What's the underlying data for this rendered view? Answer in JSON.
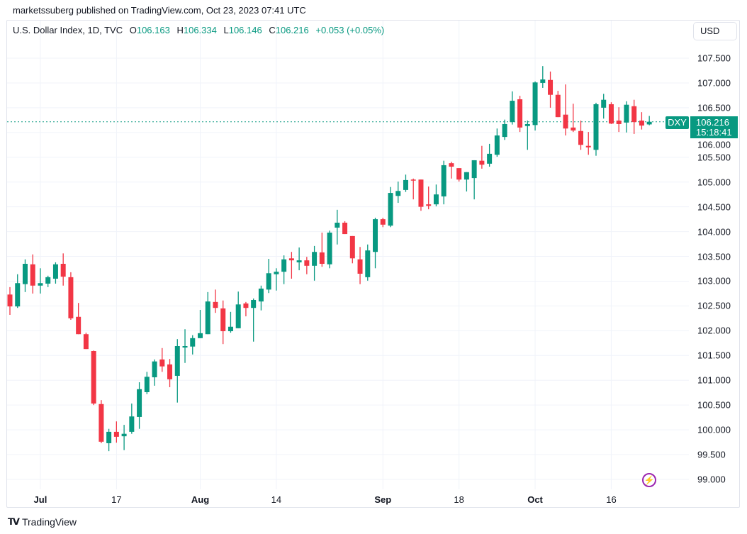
{
  "header": {
    "published": "marketssuberg published on TradingView.com, Oct 23, 2023 07:41 UTC"
  },
  "legend": {
    "symbol": "U.S. Dollar Index, 1D, TVC",
    "o_label": "O",
    "o": "106.163",
    "h_label": "H",
    "h": "106.334",
    "l_label": "L",
    "l": "106.146",
    "c_label": "C",
    "c": "106.216",
    "change": "+0.053 (+0.05%)"
  },
  "currency_button": "USD",
  "last_price": {
    "ticker": "DXY",
    "price": "106.216",
    "countdown": "15:18:41"
  },
  "footer": {
    "brand": "TradingView",
    "logo_mark": "TV"
  },
  "colors": {
    "up": "#089981",
    "down": "#F23645",
    "grid": "#f0f3fa",
    "alert": "#9c27b0"
  },
  "icons": {
    "alert": "lightning-bolt-icon"
  },
  "chart_data": {
    "type": "candlestick",
    "title": "U.S. Dollar Index, 1D, TVC",
    "ylim": [
      98.85,
      107.85
    ],
    "yticks": [
      "99.000",
      "99.500",
      "100.000",
      "100.500",
      "101.000",
      "101.500",
      "102.000",
      "102.500",
      "103.000",
      "103.500",
      "104.000",
      "104.500",
      "105.000",
      "105.500",
      "106.000",
      "106.500",
      "107.000",
      "107.500"
    ],
    "xticks": [
      {
        "label": "Jul",
        "index": 4,
        "major": true
      },
      {
        "label": "17",
        "index": 14,
        "major": false
      },
      {
        "label": "Aug",
        "index": 25,
        "major": true
      },
      {
        "label": "14",
        "index": 35,
        "major": false
      },
      {
        "label": "Sep",
        "index": 49,
        "major": true
      },
      {
        "label": "18",
        "index": 59,
        "major": false
      },
      {
        "label": "Oct",
        "index": 69,
        "major": true
      },
      {
        "label": "16",
        "index": 79,
        "major": false
      }
    ],
    "grid": true,
    "last_price_line": 106.216,
    "ohlc_columns": [
      "open",
      "high",
      "low",
      "close"
    ],
    "candles": [
      [
        102.73,
        102.88,
        102.32,
        102.49
      ],
      [
        102.49,
        103.14,
        102.46,
        102.96
      ],
      [
        102.94,
        103.44,
        102.78,
        103.35
      ],
      [
        103.34,
        103.54,
        102.75,
        102.91
      ],
      [
        102.91,
        103.26,
        102.75,
        102.96
      ],
      [
        102.95,
        103.11,
        102.88,
        103.08
      ],
      [
        103.05,
        103.38,
        102.95,
        103.34
      ],
      [
        103.35,
        103.56,
        102.91,
        103.09
      ],
      [
        103.08,
        103.18,
        102.22,
        102.25
      ],
      [
        102.28,
        102.56,
        101.93,
        101.93
      ],
      [
        101.93,
        101.96,
        101.63,
        101.63
      ],
      [
        101.59,
        101.6,
        100.5,
        100.53
      ],
      [
        100.52,
        100.6,
        99.73,
        99.76
      ],
      [
        99.73,
        100.02,
        99.57,
        99.96
      ],
      [
        99.96,
        100.17,
        99.74,
        99.86
      ],
      [
        99.87,
        100.1,
        99.59,
        99.92
      ],
      [
        99.96,
        100.53,
        99.92,
        100.27
      ],
      [
        100.26,
        100.96,
        100.02,
        100.82
      ],
      [
        100.76,
        101.17,
        100.72,
        101.07
      ],
      [
        101.06,
        101.42,
        100.89,
        101.38
      ],
      [
        101.42,
        101.65,
        101.17,
        101.28
      ],
      [
        101.32,
        101.43,
        100.86,
        101.02
      ],
      [
        101.09,
        101.83,
        100.55,
        101.69
      ],
      [
        101.66,
        102.03,
        101.35,
        101.69
      ],
      [
        101.68,
        101.91,
        101.52,
        101.85
      ],
      [
        101.85,
        102.42,
        101.85,
        101.95
      ],
      [
        101.93,
        102.78,
        101.93,
        102.59
      ],
      [
        102.58,
        102.83,
        102.36,
        102.46
      ],
      [
        102.45,
        102.61,
        101.73,
        101.99
      ],
      [
        101.99,
        102.38,
        101.96,
        102.08
      ],
      [
        102.05,
        102.79,
        102.05,
        102.53
      ],
      [
        102.55,
        102.58,
        102.29,
        102.46
      ],
      [
        102.46,
        102.65,
        101.78,
        102.62
      ],
      [
        102.59,
        102.91,
        102.41,
        102.85
      ],
      [
        102.83,
        103.45,
        102.76,
        103.16
      ],
      [
        103.14,
        103.26,
        102.81,
        103.19
      ],
      [
        103.19,
        103.52,
        102.94,
        103.44
      ],
      [
        103.46,
        103.59,
        103.05,
        103.42
      ],
      [
        103.38,
        103.68,
        103.22,
        103.42
      ],
      [
        103.42,
        103.49,
        103.14,
        103.31
      ],
      [
        103.31,
        103.71,
        103.01,
        103.59
      ],
      [
        103.58,
        103.98,
        103.29,
        103.35
      ],
      [
        103.34,
        104.02,
        103.26,
        103.98
      ],
      [
        104.08,
        104.44,
        103.74,
        104.18
      ],
      [
        104.18,
        104.21,
        103.95,
        103.95
      ],
      [
        103.91,
        103.91,
        103.36,
        103.46
      ],
      [
        103.44,
        103.69,
        102.94,
        103.15
      ],
      [
        103.08,
        103.74,
        103.01,
        103.62
      ],
      [
        103.59,
        104.28,
        103.26,
        104.25
      ],
      [
        104.25,
        104.28,
        104.09,
        104.14
      ],
      [
        104.12,
        104.9,
        104.09,
        104.78
      ],
      [
        104.72,
        105.01,
        104.58,
        104.82
      ],
      [
        104.84,
        105.15,
        104.8,
        105.04
      ],
      [
        105.05,
        105.07,
        104.65,
        105.04
      ],
      [
        105.05,
        105.05,
        104.42,
        104.5
      ],
      [
        104.55,
        104.91,
        104.45,
        104.52
      ],
      [
        104.55,
        104.95,
        104.51,
        104.75
      ],
      [
        104.71,
        105.43,
        104.55,
        105.34
      ],
      [
        105.38,
        105.41,
        105.07,
        105.31
      ],
      [
        105.28,
        105.28,
        105.01,
        105.05
      ],
      [
        105.05,
        105.2,
        104.81,
        105.2
      ],
      [
        105.08,
        105.44,
        104.65,
        105.44
      ],
      [
        105.43,
        105.73,
        105.27,
        105.35
      ],
      [
        105.37,
        105.77,
        105.31,
        105.57
      ],
      [
        105.55,
        106.08,
        105.51,
        105.94
      ],
      [
        105.91,
        106.26,
        105.85,
        106.17
      ],
      [
        106.21,
        106.83,
        106.16,
        106.64
      ],
      [
        106.67,
        106.74,
        106.01,
        106.1
      ],
      [
        106.13,
        106.24,
        105.65,
        106.17
      ],
      [
        106.15,
        107.03,
        106.04,
        107.01
      ],
      [
        107.0,
        107.34,
        106.9,
        107.07
      ],
      [
        107.06,
        107.23,
        106.5,
        106.76
      ],
      [
        106.76,
        106.84,
        106.31,
        106.31
      ],
      [
        106.36,
        106.97,
        105.94,
        106.08
      ],
      [
        106.1,
        106.58,
        106.01,
        106.04
      ],
      [
        106.03,
        106.24,
        105.65,
        105.75
      ],
      [
        105.73,
        106.01,
        105.55,
        105.7
      ],
      [
        105.65,
        106.6,
        105.53,
        106.57
      ],
      [
        106.5,
        106.78,
        106.28,
        106.66
      ],
      [
        106.57,
        106.61,
        106.17,
        106.18
      ],
      [
        106.24,
        106.51,
        106.01,
        106.17
      ],
      [
        106.2,
        106.63,
        106.0,
        106.56
      ],
      [
        106.53,
        106.66,
        105.97,
        106.21
      ],
      [
        106.24,
        106.41,
        106.06,
        106.14
      ],
      [
        106.163,
        106.334,
        106.146,
        106.216
      ]
    ]
  }
}
